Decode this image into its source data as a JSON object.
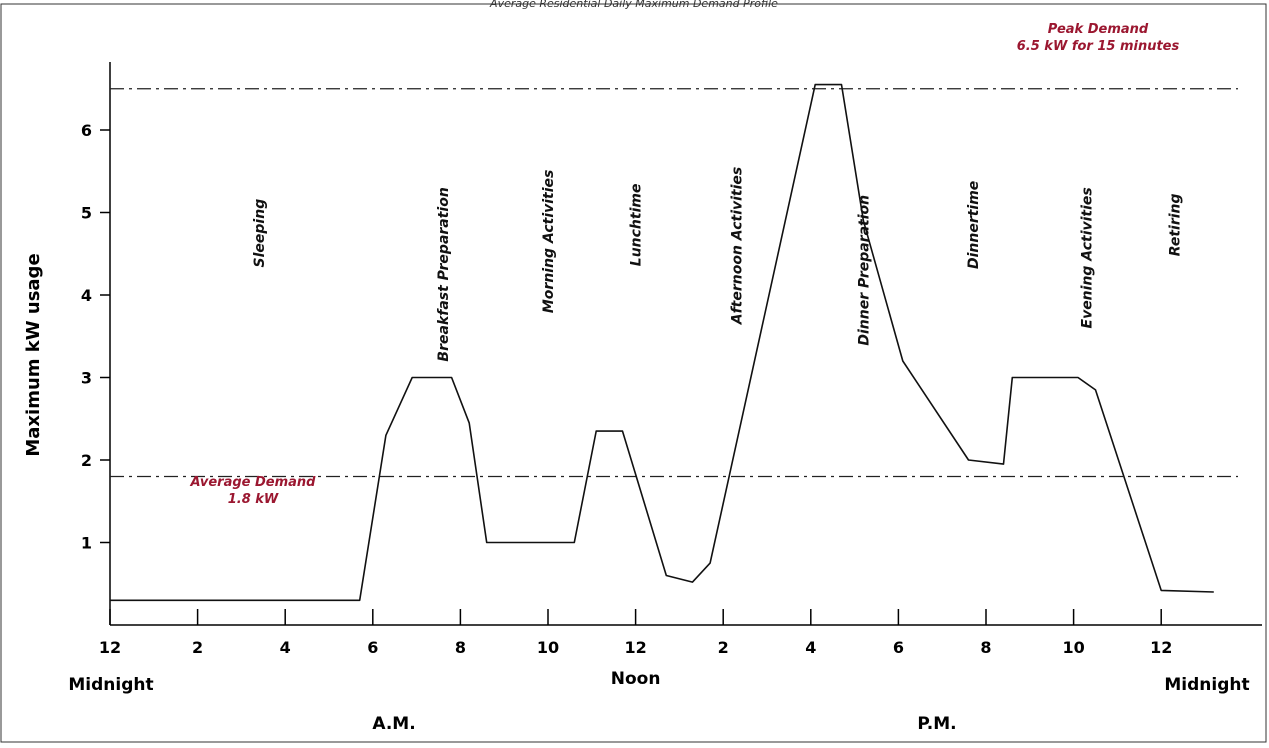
{
  "chart_data": {
    "type": "line",
    "title": "",
    "caption": "Average Residential Daily Maximum Demand Profile",
    "xlabel": "",
    "ylabel": "Maximum kW usage",
    "ylim": [
      0,
      6.7
    ],
    "xlim": [
      0,
      26.7
    ],
    "grid": false,
    "y_ticks": [
      1,
      2,
      3,
      4,
      5,
      6
    ],
    "x_ticks": [
      {
        "x": 0,
        "label": "12"
      },
      {
        "x": 2,
        "label": "2"
      },
      {
        "x": 4,
        "label": "4"
      },
      {
        "x": 6,
        "label": "6"
      },
      {
        "x": 8,
        "label": "8"
      },
      {
        "x": 10,
        "label": "10"
      },
      {
        "x": 12,
        "label": "12"
      },
      {
        "x": 14,
        "label": "2"
      },
      {
        "x": 16,
        "label": "4"
      },
      {
        "x": 18,
        "label": "6"
      },
      {
        "x": 20,
        "label": "8"
      },
      {
        "x": 22,
        "label": "10"
      },
      {
        "x": 24,
        "label": "12"
      }
    ],
    "time_labels": [
      {
        "x": 0,
        "label": "Midnight"
      },
      {
        "x": 12,
        "label": "Noon"
      },
      {
        "x": 25,
        "label": "Midnight"
      }
    ],
    "period_labels": [
      {
        "x": 6,
        "label": "A.M."
      },
      {
        "x": 18,
        "label": "P.M."
      }
    ],
    "series": [
      {
        "x": [
          0,
          5.7,
          6.3,
          6.9,
          7.8,
          8.2,
          8.6,
          10.6,
          11.1,
          11.7,
          12.7,
          13.3,
          13.7,
          16.1,
          16.7,
          17.2,
          18.1,
          19.6,
          20.4,
          20.6,
          22.1,
          22.5,
          24.0,
          25.2
        ],
        "y": [
          0.3,
          0.3,
          2.3,
          3.0,
          3.0,
          2.45,
          1.0,
          1.0,
          2.35,
          2.35,
          0.6,
          0.52,
          0.75,
          6.55,
          6.55,
          4.9,
          3.2,
          2.0,
          1.95,
          3.0,
          3.0,
          2.85,
          0.42,
          0.4
        ]
      }
    ],
    "reference_lines": [
      {
        "y": 6.5,
        "label": "Peak Demand",
        "sublabel": "6.5 kW for 15 minutes"
      },
      {
        "y": 1.8,
        "label": "Average Demand",
        "sublabel": "1.8 kW"
      }
    ],
    "activities": [
      {
        "x": 3.4,
        "y": 4.75,
        "label": "Sleeping"
      },
      {
        "x": 7.6,
        "y": 4.25,
        "label": "Breakfast Preparation"
      },
      {
        "x": 10.0,
        "y": 4.65,
        "label": "Morning Activities"
      },
      {
        "x": 12.0,
        "y": 4.85,
        "label": "Lunchtime"
      },
      {
        "x": 14.3,
        "y": 4.6,
        "label": "Afternoon Activities"
      },
      {
        "x": 17.2,
        "y": 4.3,
        "label": "Dinner Preparation"
      },
      {
        "x": 19.7,
        "y": 4.85,
        "label": "Dinnertime"
      },
      {
        "x": 22.3,
        "y": 4.45,
        "label": "Evening Activities"
      },
      {
        "x": 24.3,
        "y": 4.85,
        "label": "Retiring"
      }
    ]
  }
}
